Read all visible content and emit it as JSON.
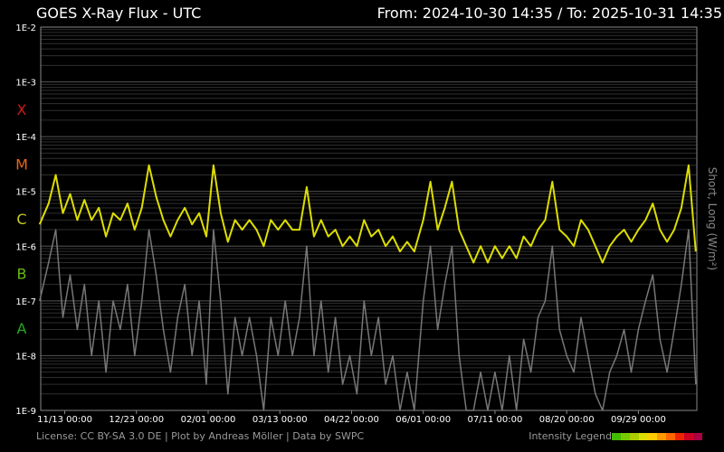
{
  "header": {
    "title": "GOES X-Ray Flux - UTC",
    "range": "From: 2024-10-30 14:35  /  To: 2025-10-31 14:35"
  },
  "footer": {
    "credits": "License: CC BY-SA 3.0 DE | Plot by Andreas Möller | Data by SWPC",
    "legend_label": "Intensity Legend"
  },
  "chart_data": {
    "type": "line",
    "title": "GOES X-Ray Flux - UTC",
    "ylabel": "Short, Long (W/m²)",
    "yscale": "log",
    "ylim": [
      1e-09,
      0.01
    ],
    "x_start": "2024-10-30 14:35",
    "x_end": "2025-10-31 14:35",
    "y_tick_labels": [
      "1E-2",
      "1E-3",
      "1E-4",
      "1E-5",
      "1E-6",
      "1E-7",
      "1E-8",
      "1E-9"
    ],
    "x_tick_labels": [
      "11/13 00:00",
      "12/23 00:00",
      "02/01 00:00",
      "03/13 00:00",
      "04/22 00:00",
      "06/01 00:00",
      "07/11 00:00",
      "08/20 00:00",
      "09/29 00:00"
    ],
    "x_ticks": [
      "2024-11-13",
      "2024-12-23",
      "2025-02-01",
      "2025-03-13",
      "2025-04-22",
      "2025-06-01",
      "2025-07-11",
      "2025-08-20",
      "2025-09-29"
    ],
    "flare_classes": [
      {
        "label": "X",
        "color": "#cc1a1a"
      },
      {
        "label": "M",
        "color": "#e8661a"
      },
      {
        "label": "C",
        "color": "#cccc22"
      },
      {
        "label": "B",
        "color": "#66bb11"
      },
      {
        "label": "A",
        "color": "#22aa22"
      }
    ],
    "legend_colors": [
      "#44bb00",
      "#77cc00",
      "#aacc00",
      "#dddd00",
      "#ffcc00",
      "#ff9900",
      "#ff6600",
      "#ee2200",
      "#cc0022",
      "#aa0044"
    ],
    "grid": true,
    "series": [
      {
        "name": "Long",
        "color": "#dddd00",
        "points": [
          [
            "2024-10-30",
            2.5e-06
          ],
          [
            "2024-11-04",
            6e-06
          ],
          [
            "2024-11-08",
            2e-05
          ],
          [
            "2024-11-12",
            4e-06
          ],
          [
            "2024-11-16",
            9e-06
          ],
          [
            "2024-11-20",
            3e-06
          ],
          [
            "2024-11-24",
            7e-06
          ],
          [
            "2024-11-28",
            3e-06
          ],
          [
            "2024-12-02",
            5e-06
          ],
          [
            "2024-12-06",
            1.5e-06
          ],
          [
            "2024-12-10",
            4e-06
          ],
          [
            "2024-12-14",
            3e-06
          ],
          [
            "2024-12-18",
            6e-06
          ],
          [
            "2024-12-22",
            2e-06
          ],
          [
            "2024-12-26",
            5e-06
          ],
          [
            "2024-12-30",
            3e-05
          ],
          [
            "2025-01-03",
            8e-06
          ],
          [
            "2025-01-07",
            3e-06
          ],
          [
            "2025-01-11",
            1.5e-06
          ],
          [
            "2025-01-15",
            3e-06
          ],
          [
            "2025-01-19",
            5e-06
          ],
          [
            "2025-01-23",
            2.5e-06
          ],
          [
            "2025-01-27",
            4e-06
          ],
          [
            "2025-01-31",
            1.5e-06
          ],
          [
            "2025-02-04",
            3e-05
          ],
          [
            "2025-02-08",
            4e-06
          ],
          [
            "2025-02-12",
            1.2e-06
          ],
          [
            "2025-02-16",
            3e-06
          ],
          [
            "2025-02-20",
            2e-06
          ],
          [
            "2025-02-24",
            3e-06
          ],
          [
            "2025-02-28",
            2e-06
          ],
          [
            "2025-03-04",
            1e-06
          ],
          [
            "2025-03-08",
            3e-06
          ],
          [
            "2025-03-12",
            2e-06
          ],
          [
            "2025-03-16",
            3e-06
          ],
          [
            "2025-03-20",
            2e-06
          ],
          [
            "2025-03-24",
            2e-06
          ],
          [
            "2025-03-28",
            1.2e-05
          ],
          [
            "2025-04-01",
            1.5e-06
          ],
          [
            "2025-04-05",
            3e-06
          ],
          [
            "2025-04-09",
            1.5e-06
          ],
          [
            "2025-04-13",
            2e-06
          ],
          [
            "2025-04-17",
            1e-06
          ],
          [
            "2025-04-21",
            1.5e-06
          ],
          [
            "2025-04-25",
            1e-06
          ],
          [
            "2025-04-29",
            3e-06
          ],
          [
            "2025-05-03",
            1.5e-06
          ],
          [
            "2025-05-07",
            2e-06
          ],
          [
            "2025-05-11",
            1e-06
          ],
          [
            "2025-05-15",
            1.5e-06
          ],
          [
            "2025-05-19",
            8e-07
          ],
          [
            "2025-05-23",
            1.2e-06
          ],
          [
            "2025-05-27",
            8e-07
          ],
          [
            "2025-06-01",
            3e-06
          ],
          [
            "2025-06-05",
            1.5e-05
          ],
          [
            "2025-06-09",
            2e-06
          ],
          [
            "2025-06-13",
            5e-06
          ],
          [
            "2025-06-17",
            1.5e-05
          ],
          [
            "2025-06-21",
            2e-06
          ],
          [
            "2025-06-25",
            1e-06
          ],
          [
            "2025-06-29",
            5e-07
          ],
          [
            "2025-07-03",
            1e-06
          ],
          [
            "2025-07-07",
            5e-07
          ],
          [
            "2025-07-11",
            1e-06
          ],
          [
            "2025-07-15",
            6e-07
          ],
          [
            "2025-07-19",
            1e-06
          ],
          [
            "2025-07-23",
            6e-07
          ],
          [
            "2025-07-27",
            1.5e-06
          ],
          [
            "2025-07-31",
            1e-06
          ],
          [
            "2025-08-04",
            2e-06
          ],
          [
            "2025-08-08",
            3e-06
          ],
          [
            "2025-08-12",
            1.5e-05
          ],
          [
            "2025-08-16",
            2e-06
          ],
          [
            "2025-08-20",
            1.5e-06
          ],
          [
            "2025-08-24",
            1e-06
          ],
          [
            "2025-08-28",
            3e-06
          ],
          [
            "2025-09-01",
            2e-06
          ],
          [
            "2025-09-05",
            1e-06
          ],
          [
            "2025-09-09",
            5e-07
          ],
          [
            "2025-09-13",
            1e-06
          ],
          [
            "2025-09-17",
            1.5e-06
          ],
          [
            "2025-09-21",
            2e-06
          ],
          [
            "2025-09-25",
            1.2e-06
          ],
          [
            "2025-09-29",
            2e-06
          ],
          [
            "2025-10-03",
            3e-06
          ],
          [
            "2025-10-07",
            6e-06
          ],
          [
            "2025-10-11",
            2e-06
          ],
          [
            "2025-10-15",
            1.2e-06
          ],
          [
            "2025-10-19",
            2e-06
          ],
          [
            "2025-10-23",
            5e-06
          ],
          [
            "2025-10-27",
            3e-05
          ],
          [
            "2025-10-31",
            8e-07
          ]
        ]
      },
      {
        "name": "Short",
        "color": "#777777",
        "points": [
          [
            "2024-10-30",
            1e-07
          ],
          [
            "2024-11-04",
            5e-07
          ],
          [
            "2024-11-08",
            2e-06
          ],
          [
            "2024-11-12",
            5e-08
          ],
          [
            "2024-11-16",
            3e-07
          ],
          [
            "2024-11-20",
            3e-08
          ],
          [
            "2024-11-24",
            2e-07
          ],
          [
            "2024-11-28",
            1e-08
          ],
          [
            "2024-12-02",
            1e-07
          ],
          [
            "2024-12-06",
            5e-09
          ],
          [
            "2024-12-10",
            1e-07
          ],
          [
            "2024-12-14",
            3e-08
          ],
          [
            "2024-12-18",
            2e-07
          ],
          [
            "2024-12-22",
            1e-08
          ],
          [
            "2024-12-26",
            1e-07
          ],
          [
            "2024-12-30",
            2e-06
          ],
          [
            "2025-01-03",
            3e-07
          ],
          [
            "2025-01-07",
            3e-08
          ],
          [
            "2025-01-11",
            5e-09
          ],
          [
            "2025-01-15",
            5e-08
          ],
          [
            "2025-01-19",
            2e-07
          ],
          [
            "2025-01-23",
            1e-08
          ],
          [
            "2025-01-27",
            1e-07
          ],
          [
            "2025-01-31",
            3e-09
          ],
          [
            "2025-02-04",
            2e-06
          ],
          [
            "2025-02-08",
            1e-07
          ],
          [
            "2025-02-12",
            2e-09
          ],
          [
            "2025-02-16",
            5e-08
          ],
          [
            "2025-02-20",
            1e-08
          ],
          [
            "2025-02-24",
            5e-08
          ],
          [
            "2025-02-28",
            1e-08
          ],
          [
            "2025-03-04",
            1e-09
          ],
          [
            "2025-03-08",
            5e-08
          ],
          [
            "2025-03-12",
            1e-08
          ],
          [
            "2025-03-16",
            1e-07
          ],
          [
            "2025-03-20",
            1e-08
          ],
          [
            "2025-03-24",
            5e-08
          ],
          [
            "2025-03-28",
            1e-06
          ],
          [
            "2025-04-01",
            1e-08
          ],
          [
            "2025-04-05",
            1e-07
          ],
          [
            "2025-04-09",
            5e-09
          ],
          [
            "2025-04-13",
            5e-08
          ],
          [
            "2025-04-17",
            3e-09
          ],
          [
            "2025-04-21",
            1e-08
          ],
          [
            "2025-04-25",
            2e-09
          ],
          [
            "2025-04-29",
            1e-07
          ],
          [
            "2025-05-03",
            1e-08
          ],
          [
            "2025-05-07",
            5e-08
          ],
          [
            "2025-05-11",
            3e-09
          ],
          [
            "2025-05-15",
            1e-08
          ],
          [
            "2025-05-19",
            1e-09
          ],
          [
            "2025-05-23",
            5e-09
          ],
          [
            "2025-05-27",
            1e-09
          ],
          [
            "2025-06-01",
            1e-07
          ],
          [
            "2025-06-05",
            1e-06
          ],
          [
            "2025-06-09",
            3e-08
          ],
          [
            "2025-06-13",
            2e-07
          ],
          [
            "2025-06-17",
            1e-06
          ],
          [
            "2025-06-21",
            1e-08
          ],
          [
            "2025-06-25",
            1e-09
          ],
          [
            "2025-06-29",
            1e-09
          ],
          [
            "2025-07-03",
            5e-09
          ],
          [
            "2025-07-07",
            1e-09
          ],
          [
            "2025-07-11",
            5e-09
          ],
          [
            "2025-07-15",
            1e-09
          ],
          [
            "2025-07-19",
            1e-08
          ],
          [
            "2025-07-23",
            1e-09
          ],
          [
            "2025-07-27",
            2e-08
          ],
          [
            "2025-07-31",
            5e-09
          ],
          [
            "2025-08-04",
            5e-08
          ],
          [
            "2025-08-08",
            1e-07
          ],
          [
            "2025-08-12",
            1e-06
          ],
          [
            "2025-08-16",
            3e-08
          ],
          [
            "2025-08-20",
            1e-08
          ],
          [
            "2025-08-24",
            5e-09
          ],
          [
            "2025-08-28",
            5e-08
          ],
          [
            "2025-09-01",
            1e-08
          ],
          [
            "2025-09-05",
            2e-09
          ],
          [
            "2025-09-09",
            1e-09
          ],
          [
            "2025-09-13",
            5e-09
          ],
          [
            "2025-09-17",
            1e-08
          ],
          [
            "2025-09-21",
            3e-08
          ],
          [
            "2025-09-25",
            5e-09
          ],
          [
            "2025-09-29",
            3e-08
          ],
          [
            "2025-10-03",
            1e-07
          ],
          [
            "2025-10-07",
            3e-07
          ],
          [
            "2025-10-11",
            2e-08
          ],
          [
            "2025-10-15",
            5e-09
          ],
          [
            "2025-10-19",
            3e-08
          ],
          [
            "2025-10-23",
            2e-07
          ],
          [
            "2025-10-27",
            2e-06
          ],
          [
            "2025-10-31",
            3e-09
          ]
        ]
      }
    ]
  }
}
